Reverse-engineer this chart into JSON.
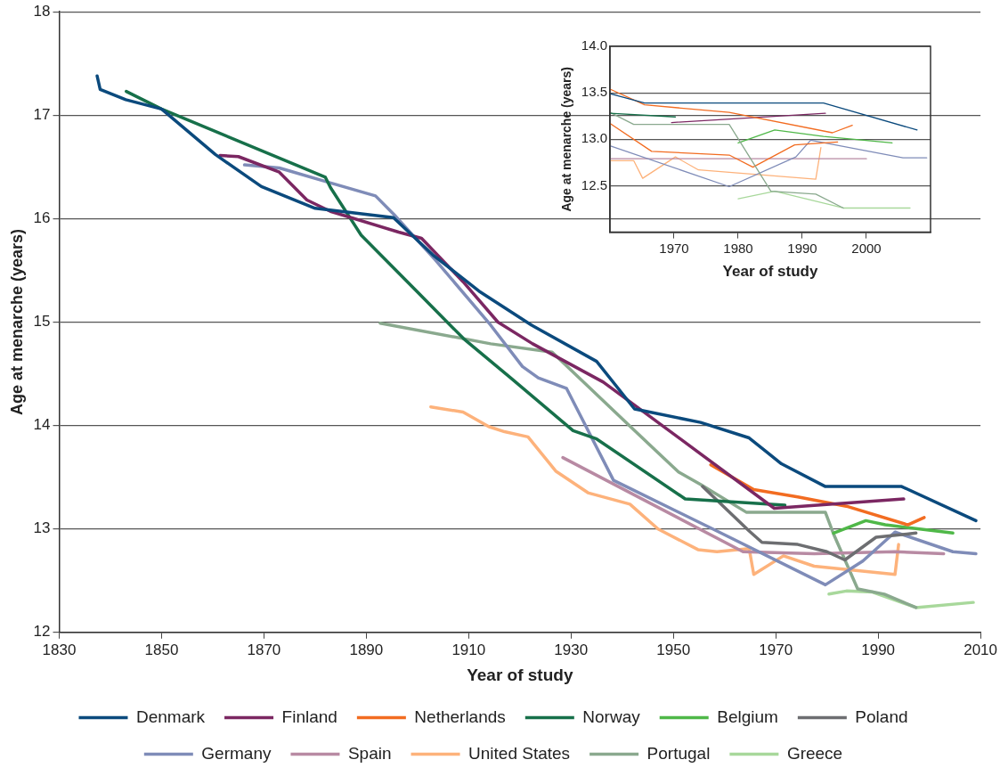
{
  "chart_data": [
    {
      "type": "line",
      "xlabel": "Year of study",
      "ylabel": "Age at menarche (years)",
      "xlim": [
        1830,
        2010
      ],
      "xticks": [
        1830,
        1850,
        1870,
        1890,
        1910,
        1930,
        1950,
        1970,
        1990,
        2010
      ],
      "ylim": [
        12,
        18
      ],
      "yticks": [
        12,
        13,
        14,
        15,
        16,
        17,
        18
      ],
      "grid": "y",
      "legend": "bottom",
      "marker": "none",
      "line_style": "solid",
      "series": [
        {
          "name": "Denmark",
          "color": "#0b4a7d",
          "x": [
            1837.4,
            1838,
            1843,
            1850,
            1860.5,
            1869.5,
            1880,
            1895.3,
            1903,
            1912,
            1922.3,
            1935,
            1942.4,
            1955.3,
            1964.8,
            1971.1,
            1979.7,
            1994.6,
            2009.1
          ],
          "values": [
            17.38,
            17.25,
            17.15,
            17.06,
            16.62,
            16.31,
            16.1,
            16.01,
            15.65,
            15.3,
            14.97,
            14.62,
            14.16,
            14.03,
            13.88,
            13.63,
            13.41,
            13.41,
            13.08
          ]
        },
        {
          "name": "Finland",
          "color": "#7b2762",
          "x": [
            1861.4,
            1865,
            1873,
            1878.4,
            1883,
            1896.3,
            1900.8,
            1908.9,
            1915.7,
            1922.5,
            1936.3,
            1969.7,
            1995
          ],
          "values": [
            16.61,
            16.6,
            16.45,
            16.18,
            16.07,
            15.87,
            15.81,
            15.39,
            15.0,
            14.79,
            14.42,
            13.2,
            13.29
          ]
        },
        {
          "name": "Netherlands",
          "color": "#f26c21",
          "x": [
            1957.3,
            1965.7,
            1974.3,
            1983.8,
            1995.8,
            1999
          ],
          "values": [
            13.62,
            13.38,
            13.31,
            13.22,
            13.04,
            13.11
          ]
        },
        {
          "name": "Norway",
          "color": "#17704a",
          "x": [
            1843.1,
            1850,
            1882,
            1883,
            1889,
            1900,
            1909,
            1918.2,
            1930.4,
            1935,
            1952.3,
            1971.8
          ],
          "values": [
            17.23,
            17.06,
            16.4,
            16.3,
            15.84,
            15.29,
            14.84,
            14.46,
            13.95,
            13.87,
            13.29,
            13.23
          ]
        },
        {
          "name": "Belgium",
          "color": "#4fb848",
          "x": [
            1981.3,
            1987.6,
            1991.4,
            2004.6
          ],
          "values": [
            12.96,
            13.08,
            13.04,
            12.96
          ]
        },
        {
          "name": "Poland",
          "color": "#6d6e71",
          "x": [
            1955.7,
            1964.8,
            1967.3,
            1974.3,
            1980,
            1983.5,
            1989.6,
            1997.4
          ],
          "values": [
            13.41,
            12.98,
            12.87,
            12.85,
            12.78,
            12.7,
            12.92,
            12.96
          ]
        },
        {
          "name": "Germany",
          "color": "#7f8cb8",
          "x": [
            1866.2,
            1873,
            1882,
            1891.8,
            1895.4,
            1903.5,
            1914.3,
            1920.5,
            1923.6,
            1929.1,
            1938.3,
            1958.5,
            1979.7,
            1987,
            1993.3,
            2004.6,
            2009.1
          ],
          "values": [
            16.52,
            16.49,
            16.36,
            16.22,
            16.04,
            15.6,
            14.97,
            14.57,
            14.46,
            14.36,
            13.47,
            12.98,
            12.46,
            12.69,
            12.97,
            12.78,
            12.76
          ]
        },
        {
          "name": "Spain",
          "color": "#b88aa3",
          "x": [
            1928.4,
            1963.6,
            1977.5,
            1993.3,
            2002.8
          ],
          "values": [
            13.69,
            12.78,
            12.76,
            12.78,
            12.76
          ]
        },
        {
          "name": "United States",
          "color": "#fdb27b",
          "x": [
            1902.6,
            1908.9,
            1913.9,
            1917,
            1921.6,
            1927,
            1933.3,
            1941.5,
            1947,
            1954.8,
            1958.5,
            1964.8,
            1965.7,
            1971.5,
            1977.5,
            1993.3,
            1994
          ],
          "values": [
            14.18,
            14.13,
            13.99,
            13.94,
            13.89,
            13.56,
            13.35,
            13.24,
            13.0,
            12.8,
            12.78,
            12.81,
            12.56,
            12.74,
            12.64,
            12.56,
            12.85
          ]
        },
        {
          "name": "Portugal",
          "color": "#8aa98e",
          "x": [
            1892.7,
            1914.3,
            1926.3,
            1942,
            1951,
            1955.3,
            1964.3,
            1979.7,
            1981.3,
            1986,
            1991.2,
            1997.4
          ],
          "values": [
            14.99,
            14.79,
            14.71,
            13.97,
            13.55,
            13.43,
            13.16,
            13.16,
            12.95,
            12.42,
            12.37,
            12.24
          ]
        },
        {
          "name": "Greece",
          "color": "#a8d89b",
          "x": [
            1980.4,
            1983.8,
            1988.9,
            1997.4,
            2008.6
          ],
          "values": [
            12.37,
            12.4,
            12.39,
            12.24,
            12.29
          ]
        }
      ]
    },
    {
      "type": "line",
      "xlabel": "Year of study",
      "ylabel": "Age at menarche (years)",
      "xlim": [
        1960,
        2010
      ],
      "xticks": [
        1970,
        1980,
        1990,
        2000
      ],
      "ylim": [
        12,
        14
      ],
      "yticks": [
        {
          "value": 12,
          "label": null
        },
        12.5,
        {
          "value": 13,
          "label": "13.0"
        },
        13.5,
        {
          "value": 14,
          "label": "14.0"
        }
      ],
      "grid": "y",
      "marker": "none",
      "line_style": "solid",
      "series": [
        {
          "color": "#0b4a7d",
          "x": [
            1960,
            1965.4,
            1993.3,
            2007.9
          ],
          "values": [
            13.49,
            13.39,
            13.39,
            13.1
          ]
        },
        {
          "color": "#f26c21",
          "x": [
            1960,
            1965.4,
            1978.6,
            1994.7,
            1997.8
          ],
          "values": [
            13.54,
            13.37,
            13.29,
            13.07,
            13.15
          ]
        },
        {
          "color": "#17704a",
          "x": [
            1960,
            1970.2
          ],
          "values": [
            13.28,
            13.24
          ]
        },
        {
          "color": "#7b2762",
          "x": [
            1969.6,
            1993.6
          ],
          "values": [
            13.18,
            13.28
          ]
        },
        {
          "color": "#8aa98e",
          "x": [
            1960,
            1963.7,
            1978.6,
            1985.1,
            1992.1,
            1996.4
          ],
          "values": [
            13.29,
            13.16,
            13.16,
            12.44,
            12.41,
            12.26
          ]
        },
        {
          "color": "#4fb848",
          "x": [
            1980,
            1985.7,
            1993.3,
            2004
          ],
          "values": [
            12.96,
            13.1,
            13.03,
            12.96
          ]
        },
        {
          "color": "#f26c21",
          "x": [
            1960,
            1966.5,
            1978.6,
            1982.3,
            1988.8,
            1995.5
          ],
          "values": [
            13.17,
            12.87,
            12.83,
            12.7,
            12.94,
            12.97
          ]
        },
        {
          "color": "#7f8cb8",
          "x": [
            1960,
            1978.6,
            1989,
            1991.3,
            2005.7,
            2009.4
          ],
          "values": [
            12.93,
            12.49,
            12.81,
            12.99,
            12.8,
            12.8
          ]
        },
        {
          "color": "#b88aa3",
          "x": [
            1960,
            2000
          ],
          "values": [
            12.79,
            12.79
          ]
        },
        {
          "color": "#fdb27b",
          "x": [
            1960,
            1963.7,
            1965.1,
            1970.2,
            1973.8,
            1992.1,
            1992.9
          ],
          "values": [
            12.77,
            12.77,
            12.58,
            12.81,
            12.67,
            12.57,
            12.91
          ]
        },
        {
          "color": "#a8d89b",
          "x": [
            1980,
            1985.7,
            1996.4,
            2006.8
          ],
          "values": [
            12.36,
            12.44,
            12.26,
            12.26
          ]
        }
      ]
    }
  ]
}
